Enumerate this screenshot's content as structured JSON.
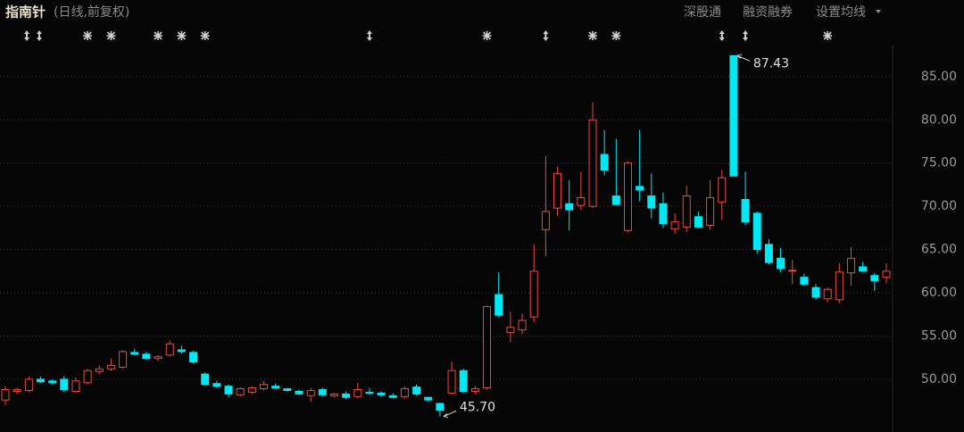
{
  "chart_data": {
    "type": "candlestick",
    "title": "指南针",
    "subtitle": "(日线,前复权)",
    "menu": [
      "深股通",
      "融资融券",
      "设置均线"
    ],
    "up_color": "#f0473c",
    "down_color": "#00e8f4",
    "grid": true,
    "ylim": [
      43.9,
      88.7
    ],
    "yticks": [
      {
        "value": 50,
        "label": "50.00"
      },
      {
        "value": 55,
        "label": "55.00"
      },
      {
        "value": 60,
        "label": "60.00"
      },
      {
        "value": 65,
        "label": "65.00"
      },
      {
        "value": 70,
        "label": "70.00"
      },
      {
        "value": 75,
        "label": "75.00"
      },
      {
        "value": 80,
        "label": "80.00"
      },
      {
        "value": 85,
        "label": "85.00"
      }
    ],
    "high_label": 87.43,
    "low_label": {
      "value": 45.7,
      "label": "45.70"
    },
    "open": [
      47.6,
      48.6,
      48.7,
      50.0,
      49.8,
      50.0,
      48.6,
      49.6,
      50.9,
      51.2,
      51.4,
      53.1,
      52.9,
      52.4,
      52.8,
      53.4,
      53.1,
      50.6,
      49.5,
      49.2,
      48.2,
      48.5,
      48.9,
      49.2,
      48.9,
      48.6,
      48.1,
      48.8,
      48.1,
      48.3,
      48.0,
      48.5,
      48.4,
      48.1,
      48.0,
      49.1,
      47.9,
      47.2,
      48.4,
      51.0,
      48.6,
      49.0,
      59.8,
      55.4,
      55.7,
      57.2,
      67.3,
      69.8,
      70.3,
      70.1,
      70.0,
      76.0,
      71.2,
      67.2,
      72.3,
      71.2,
      70.3,
      67.4,
      67.6,
      68.8,
      67.8,
      70.5,
      87.43,
      70.8,
      69.2,
      65.6,
      64.0,
      62.5,
      61.8,
      60.6,
      59.3,
      59.2,
      62.3,
      63.0,
      62.0,
      61.8
    ],
    "high": [
      49.2,
      49.0,
      50.3,
      50.3,
      50.0,
      50.4,
      50.2,
      51.2,
      51.6,
      52.4,
      53.4,
      53.5,
      53.2,
      52.8,
      54.5,
      53.9,
      53.3,
      50.8,
      49.8,
      49.4,
      49.1,
      49.2,
      49.8,
      49.5,
      49.0,
      48.8,
      49.0,
      49.0,
      48.4,
      48.6,
      49.6,
      49.0,
      48.6,
      48.4,
      49.2,
      49.4,
      48.0,
      47.3,
      52.0,
      51.2,
      49.2,
      58.5,
      62.4,
      57.8,
      57.6,
      65.6,
      75.8,
      74.6,
      73.0,
      74.0,
      82.0,
      78.8,
      77.8,
      75.2,
      78.8,
      73.8,
      71.6,
      69.2,
      72.4,
      69.4,
      73.0,
      74.2,
      87.43,
      74.0,
      69.4,
      66.2,
      65.2,
      63.8,
      62.2,
      61.0,
      60.6,
      63.4,
      65.3,
      63.6,
      62.3,
      63.4
    ],
    "low": [
      47.0,
      48.3,
      48.5,
      49.6,
      49.4,
      48.5,
      48.4,
      49.4,
      50.6,
      51.0,
      51.2,
      52.8,
      52.2,
      52.1,
      52.6,
      53.0,
      51.8,
      49.3,
      49.0,
      47.9,
      48.0,
      48.3,
      48.7,
      48.9,
      48.6,
      48.2,
      47.4,
      48.0,
      47.9,
      47.7,
      47.8,
      48.2,
      48.0,
      47.8,
      47.8,
      48.1,
      47.4,
      45.7,
      48.2,
      48.4,
      48.3,
      48.8,
      57.2,
      54.3,
      55.2,
      56.6,
      64.2,
      68.9,
      67.2,
      69.6,
      69.8,
      73.6,
      70.1,
      67.0,
      70.6,
      68.6,
      67.5,
      66.8,
      67.0,
      67.5,
      67.3,
      68.4,
      73.5,
      67.8,
      64.5,
      63.3,
      62.4,
      61.0,
      60.8,
      59.2,
      58.9,
      58.8,
      60.8,
      62.4,
      60.2,
      61.1
    ],
    "close": [
      48.8,
      48.8,
      50.0,
      49.7,
      49.6,
      48.8,
      49.8,
      51.0,
      51.2,
      51.6,
      53.2,
      52.9,
      52.4,
      52.6,
      54.1,
      53.2,
      52.0,
      49.4,
      49.2,
      48.3,
      48.9,
      49.0,
      49.4,
      49.0,
      48.7,
      48.3,
      48.7,
      48.2,
      48.3,
      47.9,
      48.8,
      48.4,
      48.2,
      47.9,
      48.9,
      48.3,
      47.6,
      46.4,
      51.0,
      48.6,
      48.9,
      58.4,
      57.4,
      56.0,
      56.8,
      62.5,
      69.4,
      73.8,
      69.6,
      71.0,
      80.0,
      74.2,
      70.2,
      75.0,
      71.9,
      69.8,
      68.0,
      68.2,
      71.2,
      67.6,
      71.0,
      73.3,
      73.5,
      68.2,
      65.0,
      63.5,
      62.8,
      62.6,
      61.0,
      59.5,
      60.4,
      62.4,
      64.0,
      62.5,
      61.4,
      62.5
    ]
  }
}
